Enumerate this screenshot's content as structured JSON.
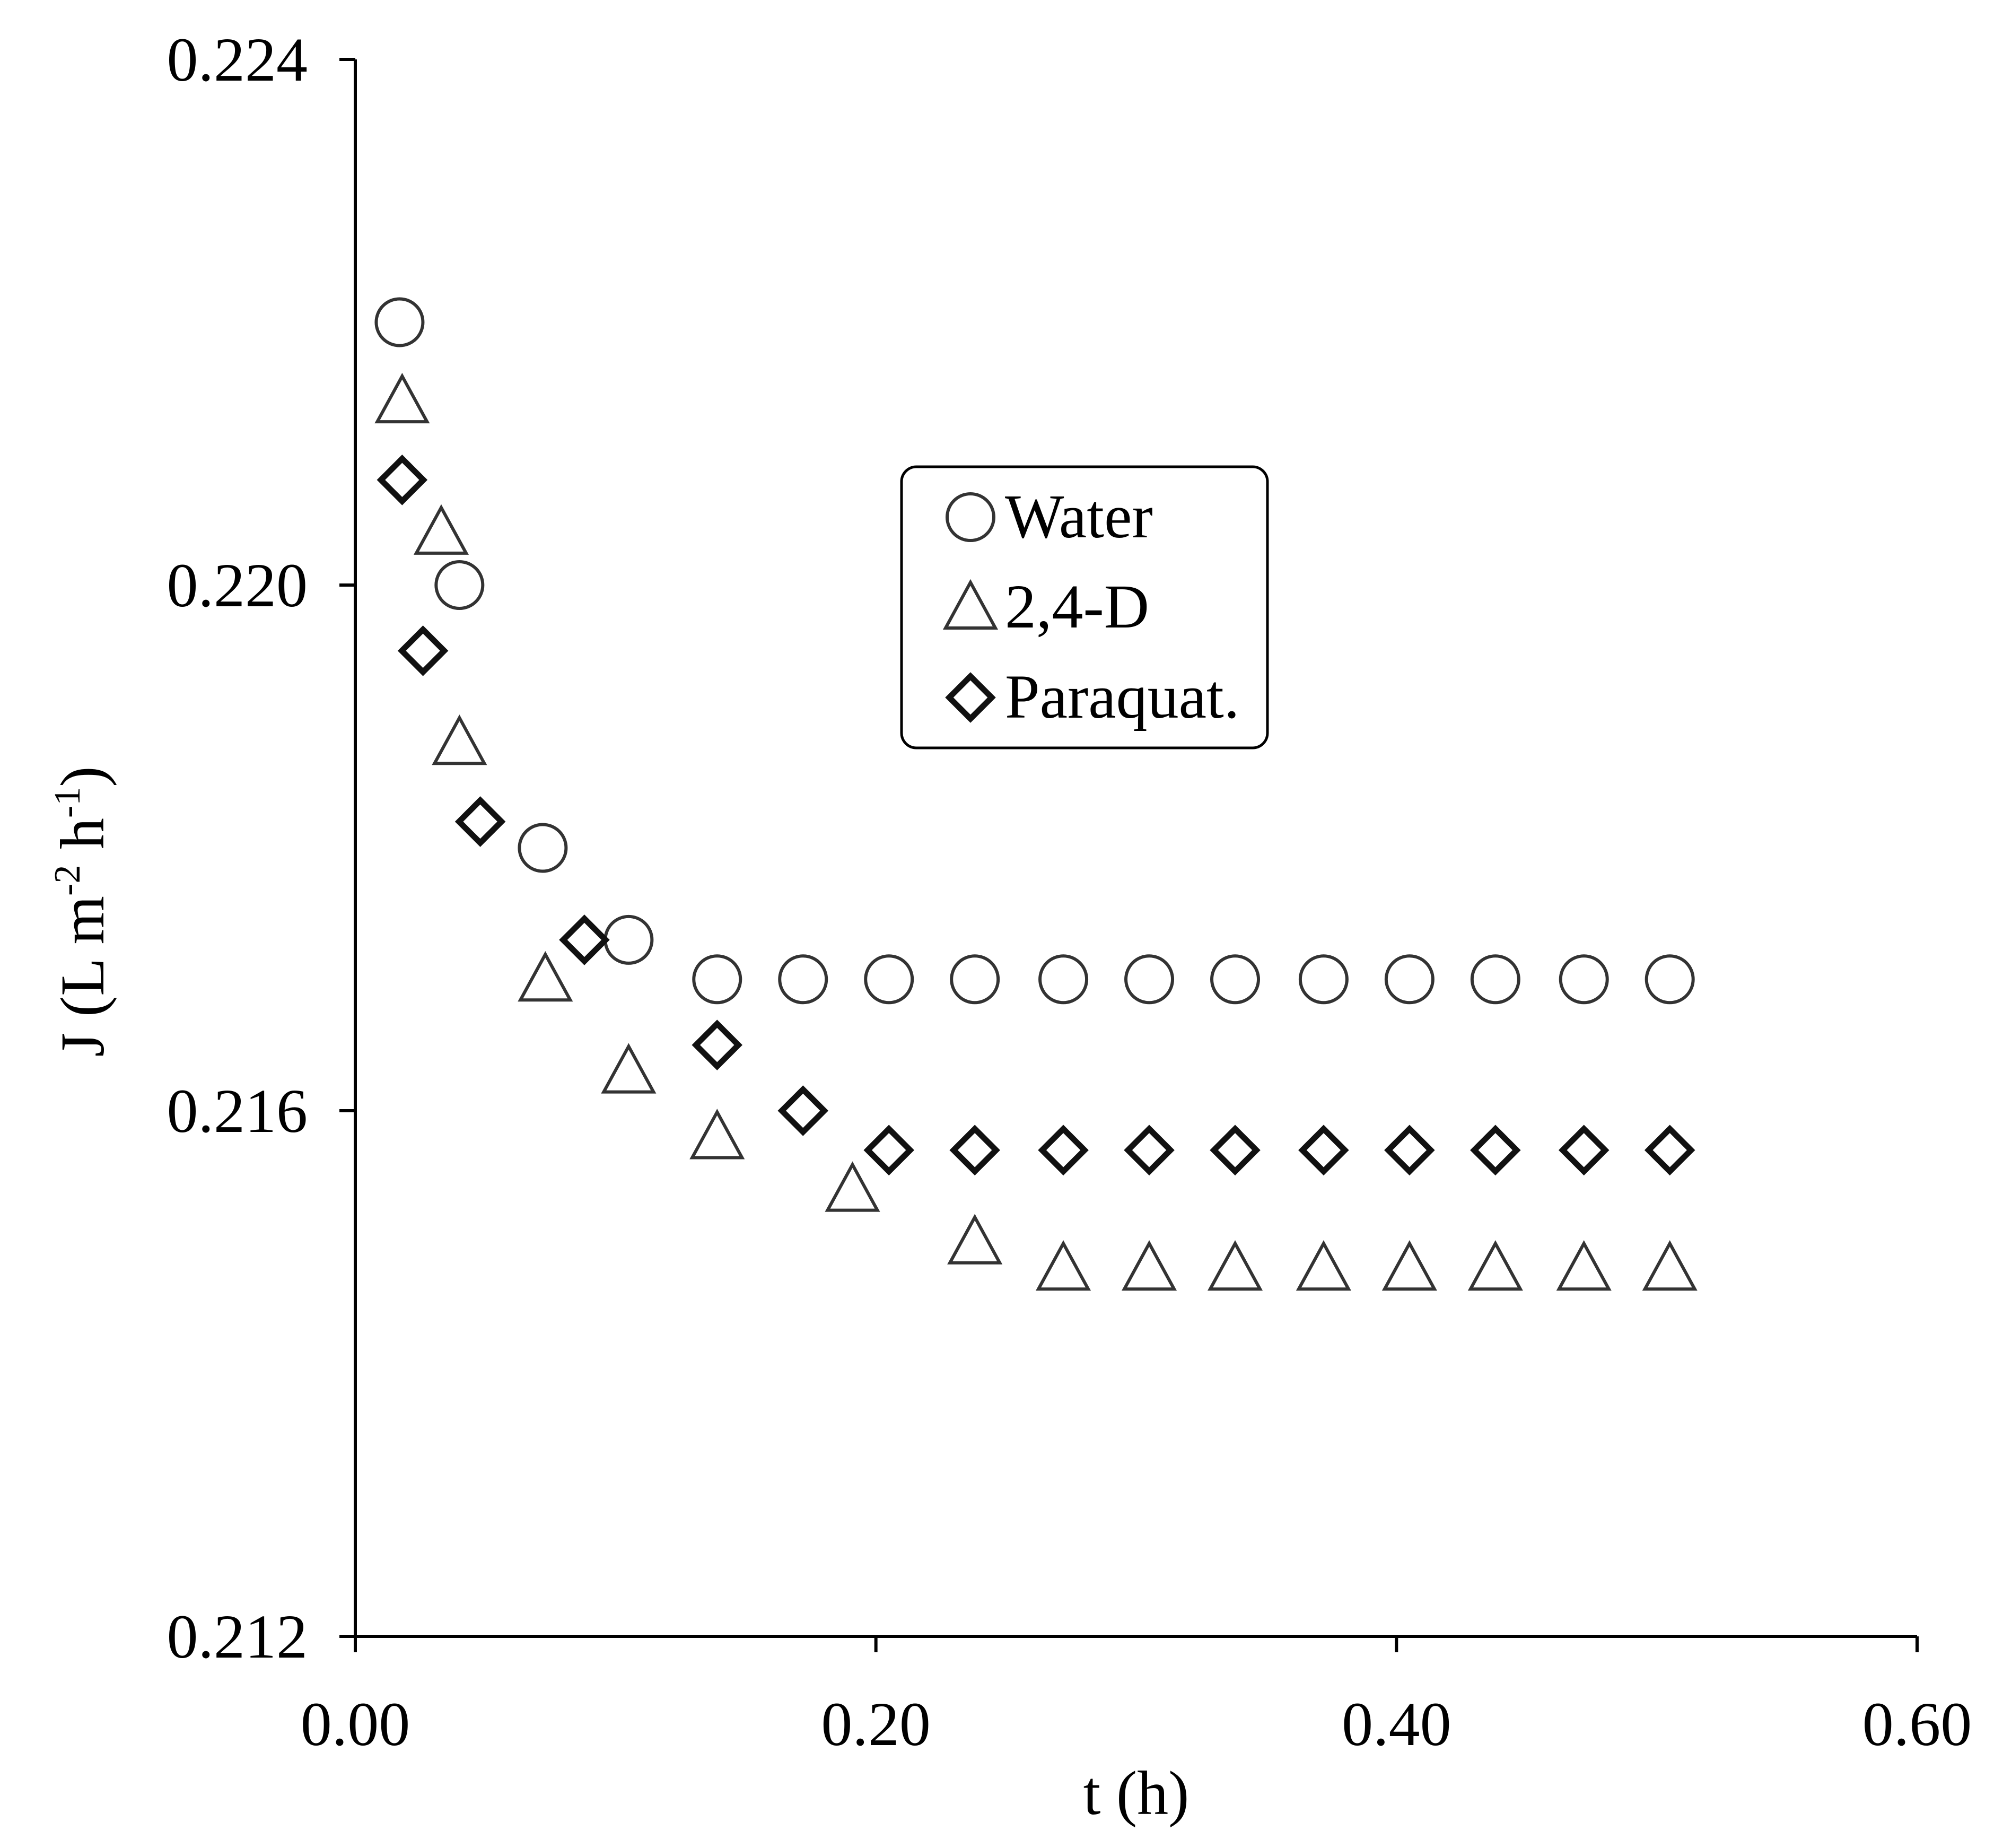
{
  "chart_data": {
    "type": "scatter",
    "title": "",
    "xlabel": "t (h)",
    "ylabel": {
      "main": "J (L m",
      "sup1": "-2",
      "mid": " h",
      "sup2": "-1",
      "end": ")"
    },
    "xlim": [
      0,
      0.6
    ],
    "ylim": [
      0.212,
      0.224
    ],
    "xticks": [
      0.0,
      0.2,
      0.4,
      0.6
    ],
    "xtick_labels": [
      "0.00",
      "0.20",
      "0.40",
      "0.60"
    ],
    "yticks": [
      0.212,
      0.216,
      0.22,
      0.224
    ],
    "ytick_labels": [
      "0.212",
      "0.216",
      "0.220",
      "0.224"
    ],
    "grid": false,
    "legend_position": "center",
    "series": [
      {
        "name": "Water",
        "marker": "circle",
        "x": [
          0.017,
          0.04,
          0.072,
          0.105,
          0.139,
          0.172,
          0.205,
          0.238,
          0.272,
          0.305,
          0.338,
          0.372,
          0.405,
          0.438,
          0.472,
          0.505
        ],
        "y": [
          0.222,
          0.22,
          0.218,
          0.2173,
          0.217,
          0.217,
          0.217,
          0.217,
          0.217,
          0.217,
          0.217,
          0.217,
          0.217,
          0.217,
          0.217,
          0.217
        ]
      },
      {
        "name": "2,4-D",
        "marker": "triangle",
        "x": [
          0.018,
          0.033,
          0.04,
          0.073,
          0.105,
          0.139,
          0.191,
          0.238,
          0.272,
          0.305,
          0.338,
          0.372,
          0.405,
          0.438,
          0.472,
          0.505
        ],
        "y": [
          0.2214,
          0.2204,
          0.2188,
          0.217,
          0.2163,
          0.2158,
          0.2154,
          0.215,
          0.2148,
          0.2148,
          0.2148,
          0.2148,
          0.2148,
          0.2148,
          0.2148,
          0.2148
        ]
      },
      {
        "name": "Paraquat.",
        "marker": "diamond",
        "x": [
          0.018,
          0.026,
          0.048,
          0.088,
          0.139,
          0.172,
          0.205,
          0.238,
          0.272,
          0.305,
          0.338,
          0.372,
          0.405,
          0.438,
          0.472,
          0.505
        ],
        "y": [
          0.2208,
          0.2195,
          0.2182,
          0.2173,
          0.2165,
          0.216,
          0.2157,
          0.2157,
          0.2157,
          0.2157,
          0.2157,
          0.2157,
          0.2157,
          0.2157,
          0.2157,
          0.2157
        ]
      }
    ]
  }
}
